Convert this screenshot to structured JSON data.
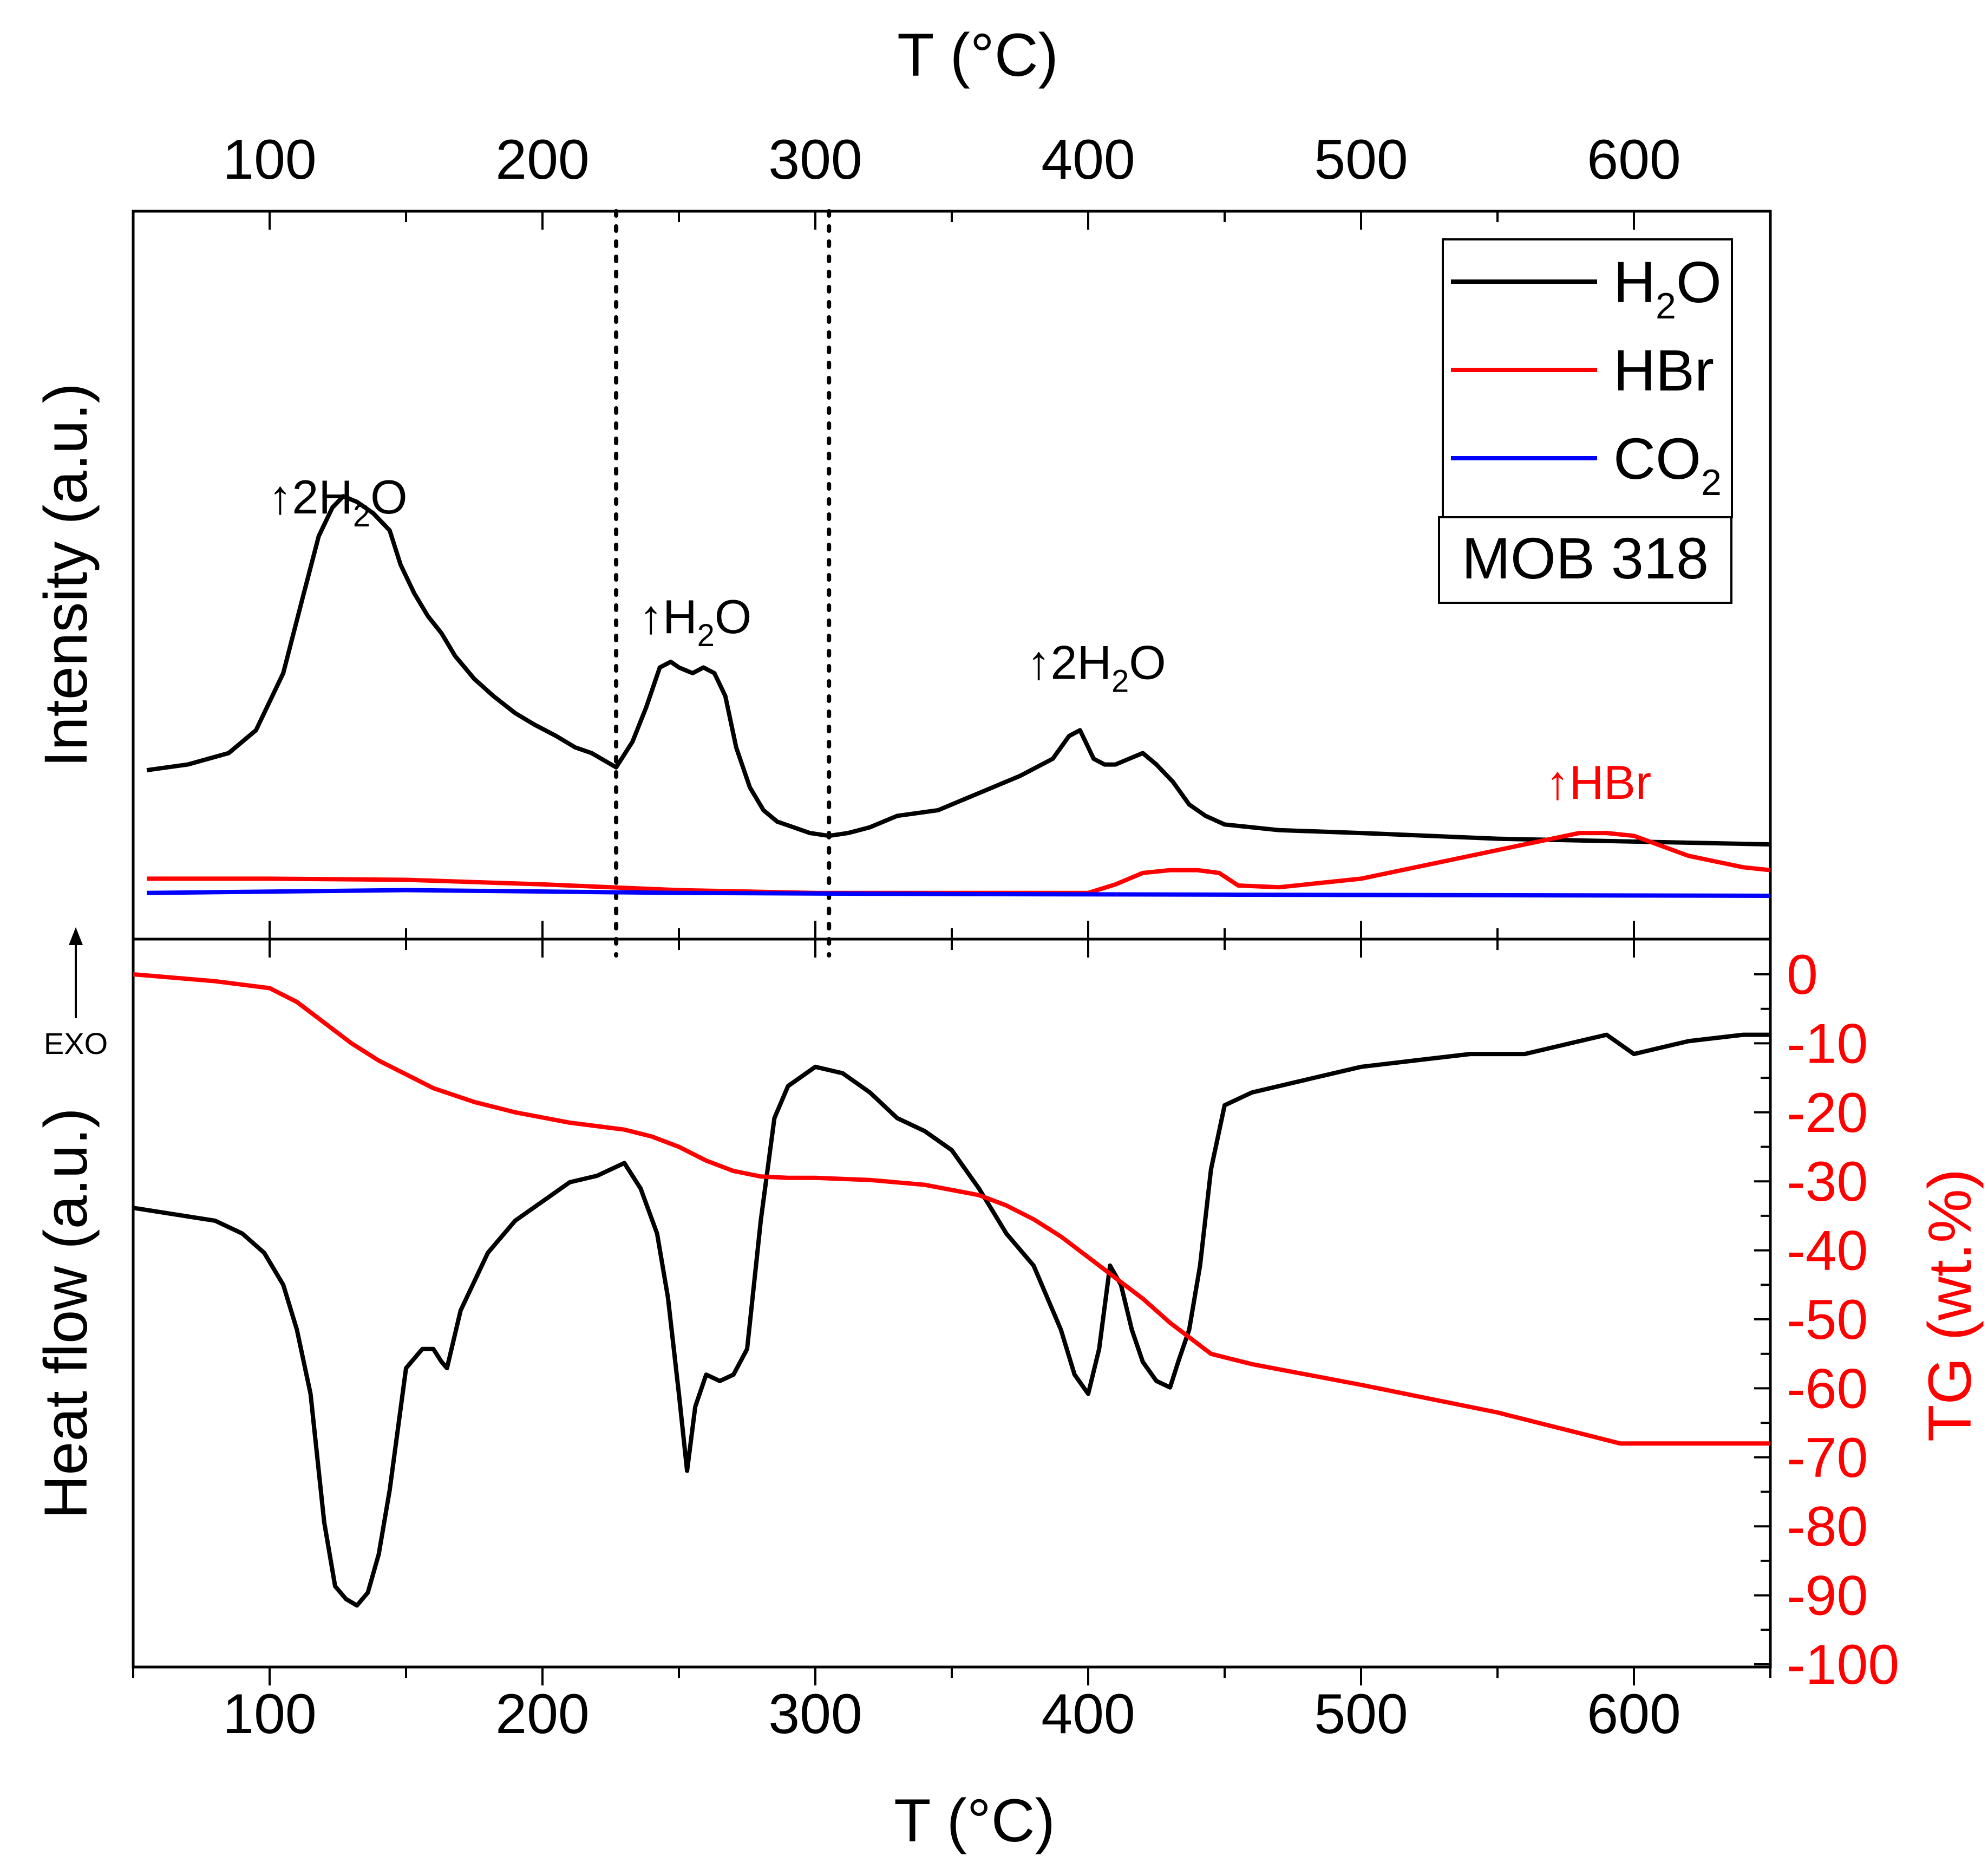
{
  "chart_data": [
    {
      "type": "line",
      "panel": "top",
      "xlabel": "T (°C)",
      "ylabel": "Intensity (a.u.)",
      "xlim": [
        50,
        650
      ],
      "ylim": [
        0,
        100
      ],
      "xticks": [
        100,
        200,
        300,
        400,
        500,
        600
      ],
      "xtick_labels": [
        "100",
        "200",
        "300",
        "400",
        "500",
        "600"
      ],
      "legend": {
        "position": "top-right",
        "entries": [
          {
            "key": "H2O",
            "base": "H",
            "sub": "2",
            "tail": "O",
            "color": "#000000"
          },
          {
            "key": "HBr",
            "base": "HBr",
            "sub": "",
            "tail": "",
            "color": "#ff0000"
          },
          {
            "key": "CO2",
            "base": "CO",
            "sub": "2",
            "tail": "",
            "color": "#0000ff"
          }
        ]
      },
      "sample_label": "MOB 318",
      "vlines": [
        227,
        305
      ],
      "annotations": [
        {
          "key": "peak1",
          "arrow": "↑",
          "pre": "2H",
          "sub": "2",
          "post": "O",
          "x": 125,
          "y": 67
        },
        {
          "key": "peak2",
          "arrow": "↑",
          "pre": "H",
          "sub": "2",
          "post": "O",
          "x": 256,
          "y": 46
        },
        {
          "key": "peak3",
          "arrow": "↑",
          "pre": "2H",
          "sub": "2",
          "post": "O",
          "x": 403,
          "y": 38
        },
        {
          "key": "peak4",
          "arrow": "↑",
          "pre": "HBr",
          "sub": "",
          "post": "",
          "x": 587,
          "y": 17
        }
      ],
      "series": [
        {
          "name": "H2O",
          "color": "#000000",
          "x": [
            55,
            70,
            85,
            95,
            105,
            112,
            118,
            123,
            127,
            132,
            138,
            144,
            148,
            153,
            158,
            163,
            168,
            175,
            182,
            190,
            197,
            205,
            212,
            218,
            227,
            233,
            238,
            243,
            247,
            250,
            255,
            259,
            263,
            267,
            271,
            276,
            281,
            286,
            292,
            298,
            305,
            312,
            320,
            330,
            345,
            360,
            375,
            387,
            393,
            397,
            402,
            406,
            410,
            415,
            420,
            425,
            431,
            437,
            443,
            450,
            470,
            500,
            550,
            600,
            650
          ],
          "y": [
            22,
            23,
            25,
            29,
            39,
            52,
            63,
            68,
            70,
            69,
            67,
            64,
            58,
            53,
            49,
            46,
            42,
            38,
            35,
            32,
            30,
            28,
            26,
            25,
            22.5,
            27,
            33,
            40,
            41,
            40,
            39,
            40,
            39,
            35,
            26,
            19,
            15,
            13,
            12,
            11,
            10.5,
            11,
            12,
            14,
            15,
            18,
            21,
            24,
            28,
            29,
            24,
            23,
            23,
            24,
            25,
            23,
            20,
            16,
            14,
            12.5,
            11.5,
            11,
            10,
            9.5,
            9
          ]
        },
        {
          "name": "HBr",
          "color": "#ff0000",
          "x": [
            55,
            100,
            150,
            200,
            250,
            300,
            350,
            400,
            410,
            420,
            430,
            440,
            448,
            455,
            470,
            500,
            530,
            560,
            580,
            590,
            600,
            620,
            640,
            650
          ],
          "y": [
            3,
            3,
            2.8,
            2,
            1,
            0.5,
            0.5,
            0.5,
            2,
            4,
            4.5,
            4.5,
            4,
            1.8,
            1.5,
            3,
            6,
            9,
            11,
            11,
            10.5,
            7,
            5,
            4.5
          ]
        },
        {
          "name": "CO2",
          "color": "#0000ff",
          "x": [
            55,
            150,
            250,
            350,
            450,
            550,
            650
          ],
          "y": [
            0.5,
            1,
            0.5,
            0.3,
            0.2,
            0.1,
            0
          ]
        }
      ]
    },
    {
      "type": "line",
      "panel": "bottom",
      "xlabel": "T (°C)",
      "ylabel": "Heat flow (a.u.)",
      "y2label": "TG (wt.%)",
      "exo_label": "EXO",
      "xlim": [
        50,
        650
      ],
      "ylim": [
        0,
        100
      ],
      "y2lim": [
        -100,
        0
      ],
      "xticks": [
        100,
        200,
        300,
        400,
        500,
        600
      ],
      "xtick_labels": [
        "100",
        "200",
        "300",
        "400",
        "500",
        "600"
      ],
      "y2ticks": [
        0,
        -10,
        -20,
        -30,
        -40,
        -50,
        -60,
        -70,
        -80,
        -90,
        -100
      ],
      "y2tick_labels": [
        "0",
        "-10",
        "-20",
        "-30",
        "-40",
        "-50",
        "-60",
        "-70",
        "-80",
        "-90",
        "-100"
      ],
      "series": [
        {
          "name": "Heat flow",
          "color": "#000000",
          "axis": "left",
          "x": [
            50,
            65,
            80,
            90,
            98,
            105,
            110,
            115,
            120,
            124,
            128,
            132,
            136,
            140,
            144,
            150,
            156,
            160,
            163,
            165,
            170,
            180,
            190,
            200,
            210,
            220,
            230,
            236,
            242,
            246,
            250,
            253,
            256,
            260,
            265,
            270,
            275,
            280,
            285,
            290,
            300,
            310,
            320,
            330,
            340,
            350,
            360,
            370,
            380,
            390,
            395,
            400,
            404,
            408,
            412,
            416,
            420,
            425,
            430,
            433,
            437,
            441,
            445,
            450,
            460,
            480,
            500,
            520,
            540,
            560,
            580,
            590,
            600,
            620,
            640,
            650
          ],
          "y": [
            64,
            63,
            62,
            60,
            57,
            52,
            45,
            35,
            15,
            5,
            3,
            2,
            4,
            10,
            20,
            39,
            42,
            42,
            40,
            39,
            48,
            57,
            62,
            65,
            68,
            69,
            71,
            67,
            60,
            50,
            35,
            23,
            33,
            38,
            37,
            38,
            42,
            62,
            78,
            83,
            86,
            85,
            82,
            78,
            76,
            73,
            67,
            60,
            55,
            45,
            38,
            35,
            42,
            55,
            52,
            45,
            40,
            37,
            36,
            40,
            45,
            55,
            70,
            80,
            82,
            84,
            86,
            87,
            88,
            88,
            90,
            91,
            88,
            90,
            91,
            91
          ]
        },
        {
          "name": "TG",
          "color": "#ff0000",
          "axis": "right",
          "x": [
            50,
            80,
            100,
            110,
            120,
            130,
            140,
            150,
            160,
            175,
            190,
            210,
            230,
            240,
            250,
            260,
            270,
            280,
            290,
            300,
            320,
            340,
            360,
            370,
            380,
            390,
            400,
            410,
            420,
            430,
            440,
            445,
            450,
            460,
            500,
            550,
            595,
            650
          ],
          "y": [
            0,
            -1,
            -2,
            -4,
            -7,
            -10,
            -12.5,
            -14.5,
            -16.5,
            -18.5,
            -20,
            -21.5,
            -22.5,
            -23.5,
            -25,
            -27,
            -28.5,
            -29.3,
            -29.5,
            -29.5,
            -29.8,
            -30.5,
            -32,
            -33.5,
            -35.5,
            -38,
            -41,
            -44,
            -47,
            -50.5,
            -53.5,
            -55,
            -55.5,
            -56.5,
            -59.5,
            -63.5,
            -68,
            -68
          ]
        }
      ]
    }
  ]
}
